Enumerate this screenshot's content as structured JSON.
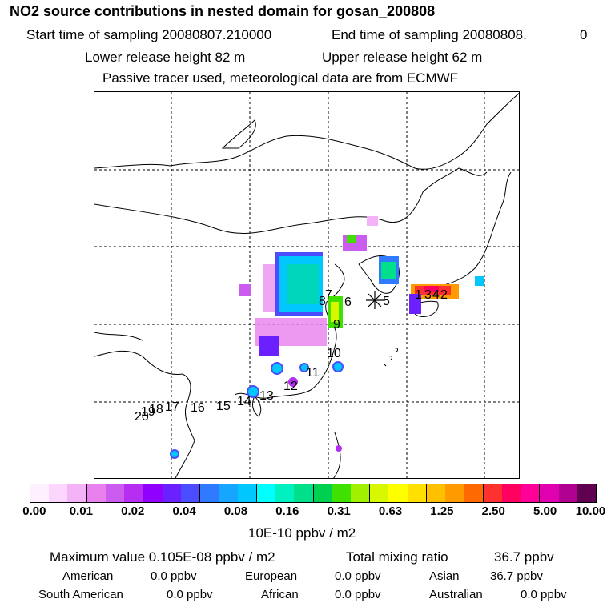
{
  "header": {
    "title": "NO2 source contributions in nested domain for gosan_200808",
    "start_label": "Start time of sampling 20080807.210000",
    "end_label": "End time of sampling 20080808.",
    "end_value": "0",
    "lower_height": "Lower release height   82 m",
    "upper_height": "Upper release height   62 m",
    "note": "Passive tracer used, meteorological data are from ECMWF"
  },
  "map": {
    "receptor_marker": "asterisk",
    "labels": [
      "1",
      "2",
      "3",
      "4",
      "5",
      "6",
      "7",
      "8",
      "9",
      "10",
      "11",
      "12",
      "13",
      "14",
      "15",
      "16",
      "17",
      "18",
      "19",
      "20"
    ]
  },
  "colorbar": {
    "colors": [
      "#fff0ff",
      "#fcd6fc",
      "#f3b3f6",
      "#e880ee",
      "#cc5cf0",
      "#b52ef2",
      "#8f00ff",
      "#6b20ff",
      "#4c4cff",
      "#2f7aff",
      "#16a6ff",
      "#00c8ff",
      "#00ffff",
      "#00f0c0",
      "#00e08a",
      "#00d050",
      "#40e000",
      "#a0f000",
      "#d8f800",
      "#ffff00",
      "#ffe000",
      "#ffc000",
      "#ff9a00",
      "#ff6a00",
      "#ff3030",
      "#ff0060",
      "#ff0099",
      "#e000b0",
      "#b00090",
      "#600050"
    ],
    "ticks": [
      "0.00",
      "0.01",
      "0.02",
      "0.04",
      "0.08",
      "0.16",
      "0.31",
      "0.63",
      "1.25",
      "2.50",
      "5.00",
      "10.00"
    ],
    "unit": "10E-10 ppbv / m2"
  },
  "summary": {
    "max_label": "Maximum value  0.105E-08 ppbv / m2",
    "total_label": "Total mixing ratio",
    "total_value": "36.7 ppbv",
    "regions": [
      {
        "name": "American",
        "value": "0.0 ppbv"
      },
      {
        "name": "European",
        "value": "0.0 ppbv"
      },
      {
        "name": "Asian",
        "value": "36.7 ppbv"
      },
      {
        "name": "South American",
        "value": "0.0 ppbv"
      },
      {
        "name": "African",
        "value": "0.0 ppbv"
      },
      {
        "name": "Australian",
        "value": "0.0 ppbv"
      }
    ]
  }
}
